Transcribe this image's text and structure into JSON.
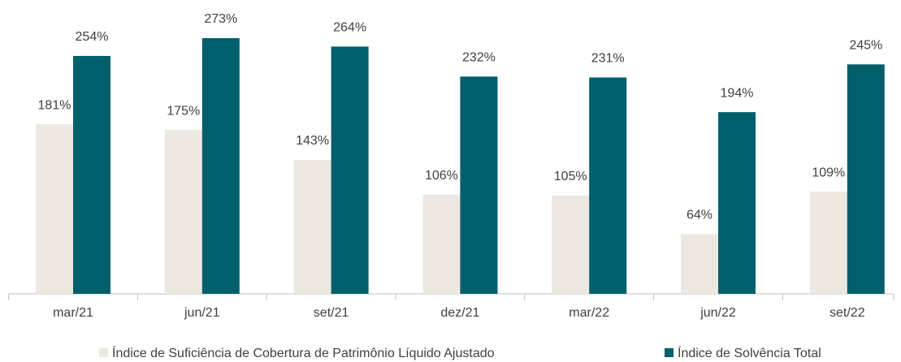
{
  "chart_data": {
    "type": "bar",
    "categories": [
      "mar/21",
      "jun/21",
      "set/21",
      "dez/21",
      "mar/22",
      "jun/22",
      "set/22"
    ],
    "series": [
      {
        "name": "Índice de Suficiência de Cobertura de Patrimônio Líquido Ajustado",
        "color": "#ece8e1",
        "values": [
          181,
          175,
          143,
          106,
          105,
          64,
          109
        ],
        "value_labels": [
          "181%",
          "175%",
          "143%",
          "106%",
          "105%",
          "64%",
          "109%"
        ]
      },
      {
        "name": "Índice de Solvência Total",
        "color": "#005f6b",
        "values": [
          254,
          273,
          264,
          232,
          231,
          194,
          245
        ],
        "value_labels": [
          "254%",
          "273%",
          "264%",
          "232%",
          "231%",
          "194%",
          "245%"
        ]
      }
    ]
  }
}
